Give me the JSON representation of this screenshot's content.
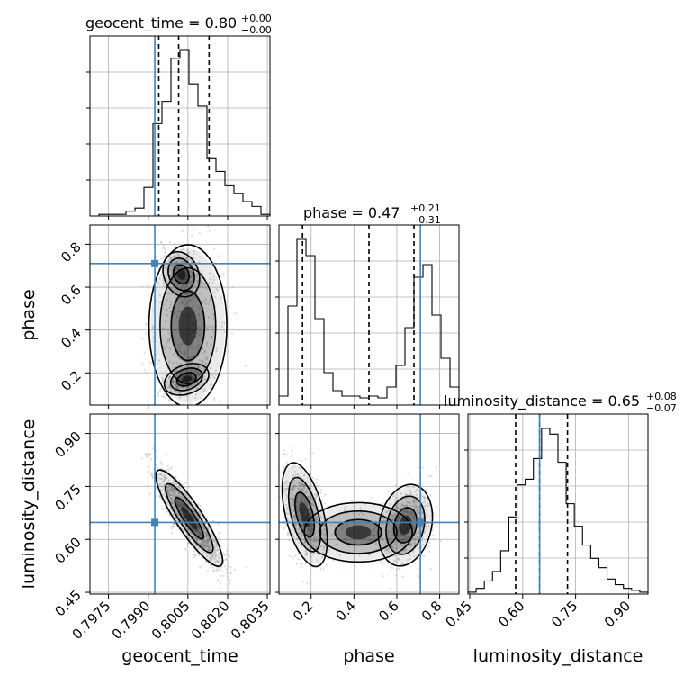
{
  "chart_data": {
    "type": "corner",
    "parameters": [
      "geocent_time",
      "phase",
      "luminosity_distance"
    ],
    "titles": [
      {
        "param": "geocent_time",
        "prefix": "geocent_time = ",
        "median": "0.80",
        "plus": "+0.00",
        "minus": "−0.00"
      },
      {
        "param": "phase",
        "prefix": "phase = ",
        "median": "0.47",
        "plus": "+0.21",
        "minus": "−0.31"
      },
      {
        "param": "luminosity_distance",
        "prefix": "luminosity_distance = ",
        "median": "0.65",
        "plus": "+0.08",
        "minus": "−0.07"
      }
    ],
    "axes": {
      "geocent_time": {
        "label": "geocent_time",
        "range": [
          0.7968,
          0.8036
        ],
        "ticks": [
          0.7975,
          0.799,
          0.8005,
          0.802,
          0.8035
        ],
        "tick_labels": [
          "0.7975",
          "0.7990",
          "0.8005",
          "0.8020",
          "0.8035"
        ]
      },
      "phase": {
        "label": "phase",
        "range": [
          0.05,
          0.89
        ],
        "ticks": [
          0.2,
          0.4,
          0.6,
          0.8
        ],
        "tick_labels": [
          "0.2",
          "0.4",
          "0.6",
          "0.8"
        ]
      },
      "luminosity_distance": {
        "label": "luminosity_distance",
        "range": [
          0.445,
          0.955
        ],
        "ticks": [
          0.45,
          0.6,
          0.75,
          0.9
        ],
        "tick_labels": [
          "0.45",
          "0.60",
          "0.75",
          "0.90"
        ]
      }
    },
    "truths": {
      "geocent_time": 0.79925,
      "phase": 0.71,
      "luminosity_distance": 0.648
    },
    "quantiles": {
      "geocent_time": [
        0.7994,
        0.80015,
        0.8013
      ],
      "phase": [
        0.16,
        0.47,
        0.68
      ],
      "luminosity_distance": [
        0.58,
        0.648,
        0.727
      ]
    },
    "histograms": {
      "geocent_time": {
        "range": [
          0.7968,
          0.8036
        ],
        "counts": [
          0,
          1,
          1,
          1,
          3,
          5,
          18,
          58,
          72,
          99,
          104,
          83,
          69,
          36,
          28,
          19,
          14,
          9,
          6,
          1
        ]
      },
      "phase": {
        "range": [
          0.05,
          0.89
        ],
        "counts": [
          5,
          55,
          92,
          83,
          48,
          18,
          8,
          5,
          5,
          4,
          5,
          4,
          10,
          22,
          43,
          71,
          78,
          50,
          26,
          10
        ]
      },
      "luminosity_distance": {
        "range": [
          0.445,
          0.955
        ],
        "counts": [
          1,
          3,
          7,
          12,
          23,
          41,
          58,
          61,
          72,
          88,
          85,
          70,
          48,
          36,
          26,
          19,
          14,
          8,
          5,
          3,
          2,
          1
        ]
      }
    },
    "grid": true,
    "hist_color": "#000000",
    "truth_color": "#4682b4",
    "scatter_color": "#9a9a9a"
  }
}
